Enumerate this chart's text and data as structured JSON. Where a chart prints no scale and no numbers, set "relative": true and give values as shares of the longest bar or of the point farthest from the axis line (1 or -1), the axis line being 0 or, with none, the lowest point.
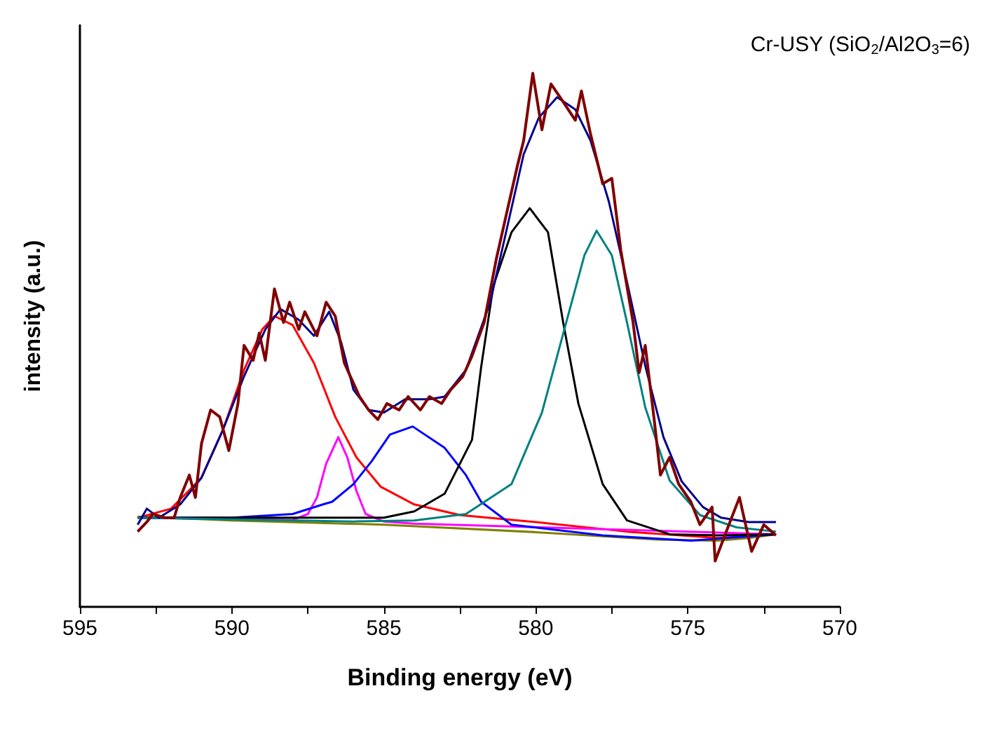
{
  "chart_data": {
    "type": "line",
    "title": "Cr-USY (SiO$_{2}$/Al2O$_{3}$=6)",
    "xlabel": "Binding energy (eV)",
    "ylabel": "intensity (a.u.)",
    "relative": true,
    "marker": "none",
    "grid": false,
    "xlim": [
      595,
      570
    ],
    "xticks": [
      595,
      {
        "value": 592.5,
        "label": null
      },
      590,
      {
        "value": 587.5,
        "label": null
      },
      585,
      {
        "value": 582.5,
        "label": null
      },
      580,
      {
        "value": 577.5,
        "label": null
      },
      575,
      {
        "value": 572.5,
        "label": null
      },
      570
    ],
    "series": [
      {
        "color": "#808000",
        "x": [
          593.1,
          590,
          585,
          580,
          576,
          574,
          573,
          572.1
        ],
        "values": [
          0.169,
          0.162,
          0.154,
          0.14,
          0.126,
          0.124,
          0.129,
          0.136
        ]
      },
      {
        "color": "#ff0000",
        "x": [
          593.1,
          592,
          591,
          590.3,
          589.6,
          589,
          588.6,
          588,
          587.3,
          586.6,
          585.9,
          585.1,
          584,
          582.5,
          580,
          577,
          574,
          572.1
        ],
        "values": [
          0.167,
          0.184,
          0.242,
          0.331,
          0.444,
          0.52,
          0.545,
          0.528,
          0.457,
          0.356,
          0.28,
          0.225,
          0.192,
          0.172,
          0.159,
          0.141,
          0.129,
          0.136
        ]
      },
      {
        "color": "#ff00ff",
        "x": [
          593.1,
          588,
          587.5,
          587.2,
          586.9,
          586.5,
          586.2,
          585.9,
          585.6,
          585,
          584,
          572.1
        ],
        "values": [
          0.167,
          0.163,
          0.174,
          0.205,
          0.268,
          0.318,
          0.28,
          0.217,
          0.174,
          0.16,
          0.156,
          0.136
        ]
      },
      {
        "color": "#0000ff",
        "x": [
          593.1,
          590,
          588,
          587,
          586.7,
          586,
          585.4,
          584.8,
          584.05,
          583,
          582.3,
          581.8,
          580.8,
          577.8,
          574.9,
          572.1
        ],
        "values": [
          0.167,
          0.167,
          0.174,
          0.192,
          0.197,
          0.23,
          0.273,
          0.323,
          0.338,
          0.298,
          0.247,
          0.197,
          0.154,
          0.134,
          0.124,
          0.136
        ]
      },
      {
        "color": "#000000",
        "x": [
          593.1,
          585,
          584,
          583,
          582.1,
          581.8,
          581.4,
          580.8,
          580.2,
          579.6,
          579.1,
          578.6,
          577.8,
          577,
          575.6,
          574,
          572.1
        ],
        "values": [
          0.167,
          0.167,
          0.179,
          0.212,
          0.313,
          0.449,
          0.601,
          0.702,
          0.747,
          0.702,
          0.533,
          0.381,
          0.23,
          0.162,
          0.136,
          0.134,
          0.136
        ]
      },
      {
        "color": "#008080",
        "x": [
          593.1,
          586,
          584,
          582.3,
          580.8,
          579.8,
          579,
          578.4,
          578,
          577.5,
          577,
          576.4,
          575.6,
          574.6,
          573.4,
          572.1
        ],
        "values": [
          0.167,
          0.16,
          0.162,
          0.174,
          0.23,
          0.364,
          0.533,
          0.659,
          0.705,
          0.659,
          0.533,
          0.374,
          0.237,
          0.172,
          0.149,
          0.141
        ]
      },
      {
        "color": "#00008b",
        "x": [
          593.1,
          592.8,
          592.4,
          591.7,
          591,
          590.3,
          589.6,
          588.9,
          588.4,
          587.8,
          587.3,
          586.8,
          586.4,
          586,
          585.5,
          585,
          584.3,
          583.5,
          583,
          582.3,
          581.5,
          580.9,
          580.4,
          579.9,
          579.3,
          578.7,
          578.2,
          577.6,
          577,
          576.4,
          575.8,
          575.2,
          574.5,
          573.9,
          573,
          572.1
        ],
        "values": [
          0.154,
          0.184,
          0.167,
          0.192,
          0.242,
          0.331,
          0.432,
          0.52,
          0.558,
          0.538,
          0.508,
          0.553,
          0.495,
          0.407,
          0.369,
          0.364,
          0.389,
          0.389,
          0.394,
          0.444,
          0.571,
          0.722,
          0.848,
          0.917,
          0.955,
          0.932,
          0.874,
          0.76,
          0.609,
          0.452,
          0.318,
          0.235,
          0.187,
          0.167,
          0.159,
          0.159
        ]
      },
      {
        "color": "#800000",
        "x": [
          593.1,
          592.8,
          592.6,
          592.2,
          591.9,
          591.7,
          591.4,
          591.2,
          591,
          590.7,
          590.4,
          590.1,
          589.8,
          589.6,
          589.3,
          589.1,
          588.9,
          588.6,
          588.3,
          588.1,
          587.8,
          587.6,
          587.2,
          586.9,
          586.6,
          586.3,
          586,
          585.8,
          585.5,
          585.2,
          584.9,
          584.5,
          584.2,
          583.8,
          583.5,
          583.1,
          582.8,
          582.4,
          582.1,
          581.7,
          581.3,
          580.9,
          580.6,
          580.4,
          580.1,
          579.8,
          579.5,
          579.2,
          578.7,
          578.5,
          578.2,
          577.8,
          577.5,
          577.2,
          576.8,
          576.6,
          576.4,
          576.1,
          575.9,
          575.6,
          575.3,
          574.9,
          574.6,
          574.2,
          574.1,
          573.7,
          573.3,
          572.9,
          572.5,
          572.1
        ],
        "values": [
          0.141,
          0.159,
          0.174,
          0.167,
          0.167,
          0.205,
          0.247,
          0.205,
          0.306,
          0.369,
          0.356,
          0.293,
          0.381,
          0.49,
          0.462,
          0.513,
          0.462,
          0.596,
          0.533,
          0.571,
          0.52,
          0.553,
          0.508,
          0.571,
          0.545,
          0.457,
          0.419,
          0.394,
          0.369,
          0.351,
          0.381,
          0.369,
          0.394,
          0.369,
          0.394,
          0.381,
          0.407,
          0.432,
          0.47,
          0.533,
          0.652,
          0.753,
          0.828,
          0.874,
          1,
          0.894,
          0.98,
          0.955,
          0.912,
          0.967,
          0.886,
          0.793,
          0.803,
          0.667,
          0.533,
          0.439,
          0.49,
          0.348,
          0.247,
          0.28,
          0.23,
          0.197,
          0.154,
          0.187,
          0.086,
          0.146,
          0.205,
          0.104,
          0.154,
          0.134
        ]
      }
    ]
  }
}
